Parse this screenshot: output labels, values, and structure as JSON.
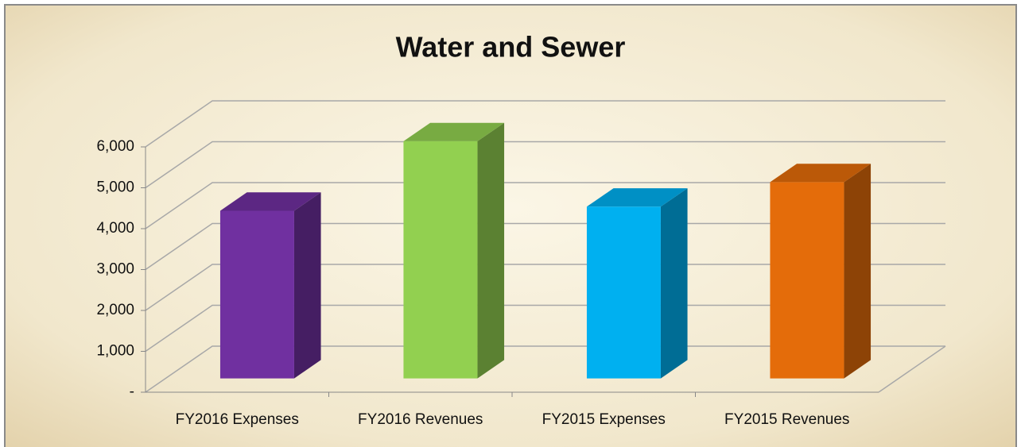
{
  "chart_data": {
    "type": "bar3d",
    "title": "Water and Sewer",
    "categories": [
      "FY2016 Expenses",
      "FY2016 Revenues",
      "FY2015 Expenses",
      "FY2015 Revenues"
    ],
    "values": [
      4100,
      5800,
      4200,
      4800
    ],
    "colors": [
      "#7030a0",
      "#92d050",
      "#00b0f0",
      "#e46c0a"
    ],
    "ylim": [
      0,
      6000
    ],
    "yticks": [
      {
        "value": 0,
        "label": "-"
      },
      {
        "value": 1000,
        "label": "1,000"
      },
      {
        "value": 2000,
        "label": "2,000"
      },
      {
        "value": 3000,
        "label": "3,000"
      },
      {
        "value": 4000,
        "label": "4,000"
      },
      {
        "value": 5000,
        "label": "5,000"
      },
      {
        "value": 6000,
        "label": "6,000"
      }
    ],
    "grid": true
  }
}
